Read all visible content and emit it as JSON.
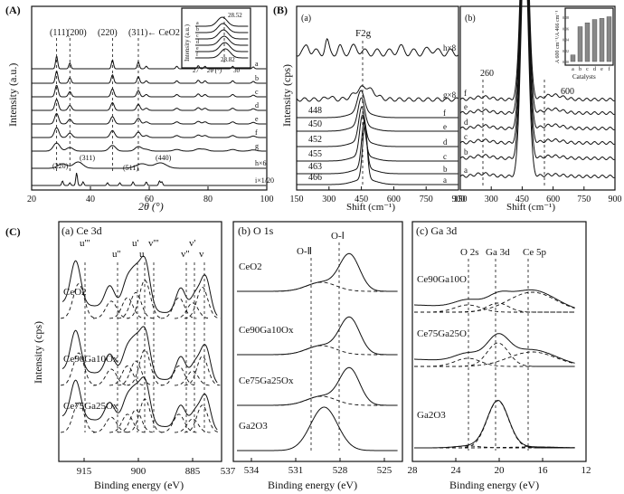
{
  "chart_data": [
    {
      "panel": "A",
      "type": "line",
      "panel_label": "(A)",
      "xlabel": "2θ (°)",
      "ylabel": "Intensity (a.u.)",
      "xlim": [
        20,
        100
      ],
      "xticks": [
        "20",
        "40",
        "60",
        "80",
        "100"
      ],
      "peak_labels": [
        "(111)",
        "(200)",
        "(220)",
        "(311)"
      ],
      "ceo2_label": "← CeO2",
      "ga_peaks": [
        "(220)",
        "(311)",
        "(511)",
        "(440)"
      ],
      "series": [
        "a",
        "b",
        "c",
        "d",
        "e",
        "f",
        "g",
        "h×6",
        "i×1/20"
      ],
      "inset": {
        "ylabel": "Intensity (a.u.)",
        "xlabel": "2θ (°)",
        "xticks": [
          "27",
          "30"
        ],
        "labels": [
          "28.52",
          "28.82"
        ],
        "series": [
          "a",
          "b",
          "c",
          "d",
          "e",
          "f"
        ]
      }
    },
    {
      "panel": "B-a",
      "type": "line",
      "panel_label": "(B)",
      "sub": "(a)",
      "xlabel": "Shift (cm⁻¹)",
      "ylabel": "Intensity (cps)",
      "xlim": [
        150,
        900
      ],
      "xticks": [
        "150",
        "300",
        "450",
        "600",
        "750",
        "900"
      ],
      "band": "F2g",
      "series": [
        "h×8",
        "g×8",
        "f",
        "e",
        "d",
        "c",
        "b",
        "a"
      ],
      "peak_positions": [
        448,
        450,
        452,
        455,
        463,
        466
      ]
    },
    {
      "panel": "B-b",
      "type": "line",
      "sub": "(b)",
      "xlabel": "Shift (cm⁻¹)",
      "xlim": [
        150,
        900
      ],
      "xticks": [
        "150",
        "300",
        "450",
        "600",
        "750",
        "900"
      ],
      "marks": [
        "260",
        "600"
      ],
      "series": [
        "f",
        "e",
        "d",
        "c",
        "b",
        "a"
      ],
      "inset": {
        "type": "bar",
        "ylabel": "A 600 cm⁻¹/A 466 cm⁻¹",
        "xlabel": "Catalysts",
        "categories": [
          "a",
          "b",
          "c",
          "d",
          "e",
          "f"
        ],
        "values": [
          0.012,
          0.063,
          0.07,
          0.076,
          0.078,
          0.081
        ],
        "ylim": [
          0,
          0.09
        ],
        "yticks": [
          "0.00",
          "0.02",
          "0.04",
          "0.06",
          "0.08"
        ]
      }
    },
    {
      "panel": "C-a",
      "type": "line",
      "panel_label": "(C)",
      "sub": "(a) Ce 3d",
      "xlabel": "Binding energy (eV)",
      "ylabel": "Intensity (cps)",
      "xlim": [
        922,
        877
      ],
      "xticks": [
        "915",
        "900",
        "885"
      ],
      "edge_tick": "537",
      "peaks": [
        "u'''",
        "u''",
        "u'",
        "u",
        "v'''",
        "v''",
        "v'",
        "v"
      ],
      "samples": [
        "CeO2",
        "Ce90Ga10Ox",
        "Ce75Ga25Ox"
      ]
    },
    {
      "panel": "C-b",
      "type": "line",
      "sub": "(b) O 1s",
      "xlabel": "Binding energy (eV)",
      "xlim": [
        537,
        525
      ],
      "xticks": [
        "534",
        "531",
        "528",
        "525"
      ],
      "components": [
        "O-Ⅱ",
        "O-Ⅰ"
      ],
      "samples": [
        "CeO2",
        "Ce90Ga10Ox",
        "Ce75Ga25Ox",
        "Ga2O3"
      ]
    },
    {
      "panel": "C-c",
      "type": "line",
      "sub": "(c) Ga 3d",
      "xlabel": "Binding energy (eV)",
      "xlim": [
        28,
        12
      ],
      "xticks": [
        "28",
        "24",
        "20",
        "16",
        "12"
      ],
      "components": [
        "O 2s",
        "Ga 3d",
        "Ce 5p"
      ],
      "samples": [
        "Ce90Ga10O",
        "Ce75Ga25O",
        "Ga2O3"
      ]
    }
  ]
}
